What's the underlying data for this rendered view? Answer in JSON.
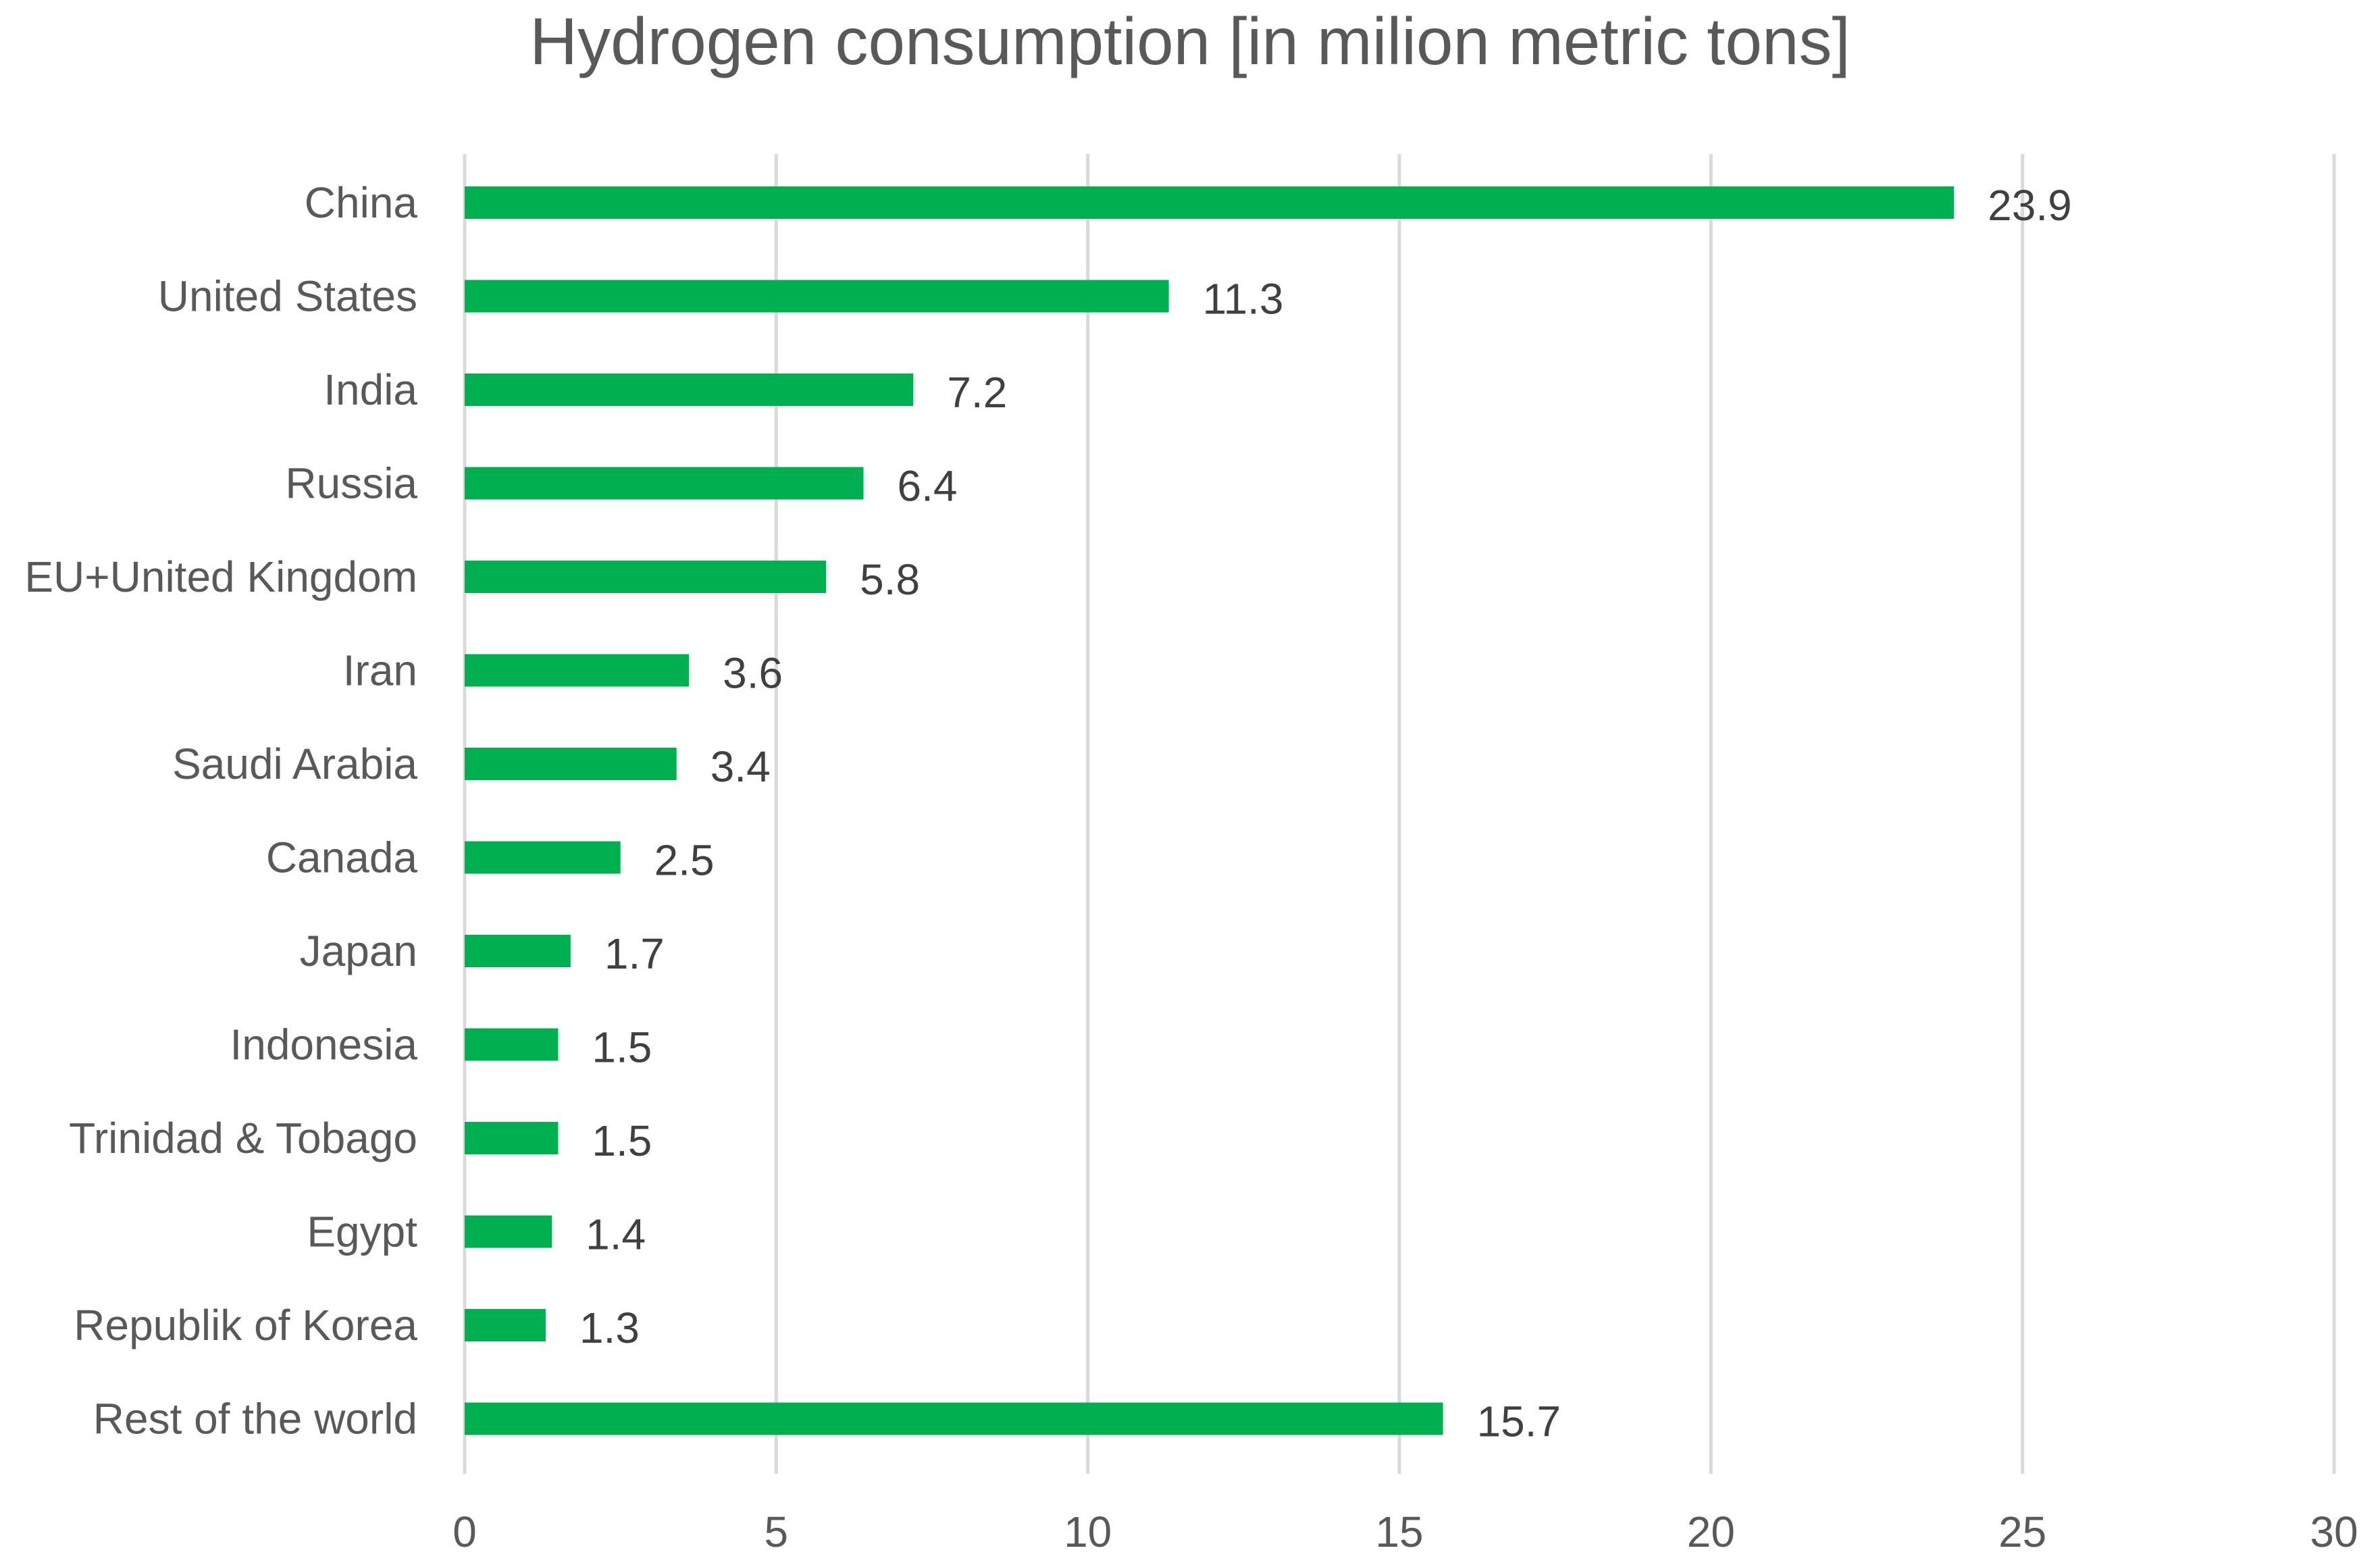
{
  "chart_data": {
    "type": "bar",
    "orientation": "horizontal",
    "title": "Hydrogen consumption [in milion metric tons]",
    "xlabel": "",
    "ylabel": "",
    "categories": [
      "China",
      "United States",
      "India",
      "Russia",
      "EU+United Kingdom",
      "Iran",
      "Saudi Arabia",
      "Canada",
      "Japan",
      "Indonesia",
      "Trinidad & Tobago",
      "Egypt",
      "Republik of Korea",
      "Rest of the world"
    ],
    "values": [
      23.9,
      11.3,
      7.2,
      6.4,
      5.8,
      3.6,
      3.4,
      2.5,
      1.7,
      1.5,
      1.5,
      1.4,
      1.3,
      15.7
    ],
    "value_labels": [
      "23.9",
      "11.3",
      "7.2",
      "6.4",
      "5.8",
      "3.6",
      "3.4",
      "2.5",
      "1.7",
      "1.5",
      "1.5",
      "1.4",
      "1.3",
      "15.7"
    ],
    "xlim": [
      0,
      30
    ],
    "xticks": [
      0,
      5,
      10,
      15,
      20,
      25,
      30
    ],
    "xtick_labels": [
      "0",
      "5",
      "10",
      "15",
      "20",
      "25",
      "30"
    ],
    "grid": true,
    "legend": "none",
    "colors": {
      "bar": "#00b050",
      "grid": "#d9d9d9",
      "title": "#595959",
      "text": "#595959",
      "value_text": "#404040"
    }
  }
}
